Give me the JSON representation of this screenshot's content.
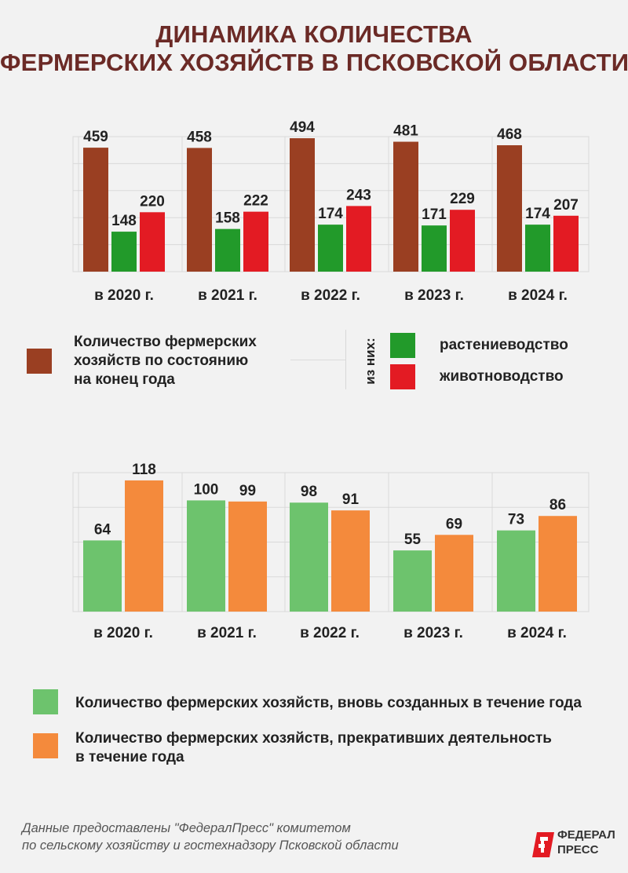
{
  "title": {
    "line1": "ДИНАМИКА КОЛИЧЕСТВА",
    "line2": "ФЕРМЕРСКИХ ХОЗЯЙСТВ В ПСКОВСКОЙ ОБЛАСТИ"
  },
  "chart_data": [
    {
      "type": "bar",
      "categories": [
        "в 2020 г.",
        "в 2021 г.",
        "в 2022 г.",
        "в 2023 г.",
        "в 2024 г."
      ],
      "series": [
        {
          "name": "Количество фермерских хозяйств по состоянию на конец года",
          "color": "#9a3f22",
          "values": [
            459,
            458,
            494,
            481,
            468
          ]
        },
        {
          "name": "растениеводство",
          "color": "#229a2a",
          "values": [
            148,
            158,
            174,
            171,
            174
          ]
        },
        {
          "name": "животноводство",
          "color": "#e31b23",
          "values": [
            220,
            222,
            243,
            229,
            207
          ]
        }
      ],
      "ylim": [
        0,
        500
      ],
      "grid": true
    },
    {
      "type": "bar",
      "categories": [
        "в 2020 г.",
        "в 2021 г.",
        "в 2022 г.",
        "в 2023 г.",
        "в 2024 г."
      ],
      "series": [
        {
          "name": "Количество фермерских хозяйств, вновь созданных в течение года",
          "color": "#6dc36d",
          "values": [
            64,
            100,
            98,
            55,
            73
          ]
        },
        {
          "name": "Количество фермерских хозяйств, прекративших деятельность в течение года",
          "color": "#f48a3c",
          "values": [
            118,
            99,
            91,
            69,
            86
          ]
        }
      ],
      "ylim": [
        0,
        125
      ],
      "grid": true
    }
  ],
  "legend1": {
    "main_line1": "Количество фермерских",
    "main_line2": "хозяйств по состоянию",
    "main_line3": "на конец года",
    "of_them": "из них:",
    "crop": "растениеводство",
    "livestock": "животноводство"
  },
  "legend2": {
    "new_label": "Количество фермерских хозяйств, вновь созданных в течение года",
    "closed_line1": "Количество фермерских хозяйств, прекративших деятельность",
    "closed_line2": "в течение года"
  },
  "source": {
    "line1": "Данные предоставлены \"ФедералПресс\"  комитетом",
    "line2": "по сельскому хозяйству и гостехнадзору Псковской области"
  },
  "logo": {
    "line1": "ФЕДЕРАЛ",
    "line2": "ПРЕСС"
  }
}
